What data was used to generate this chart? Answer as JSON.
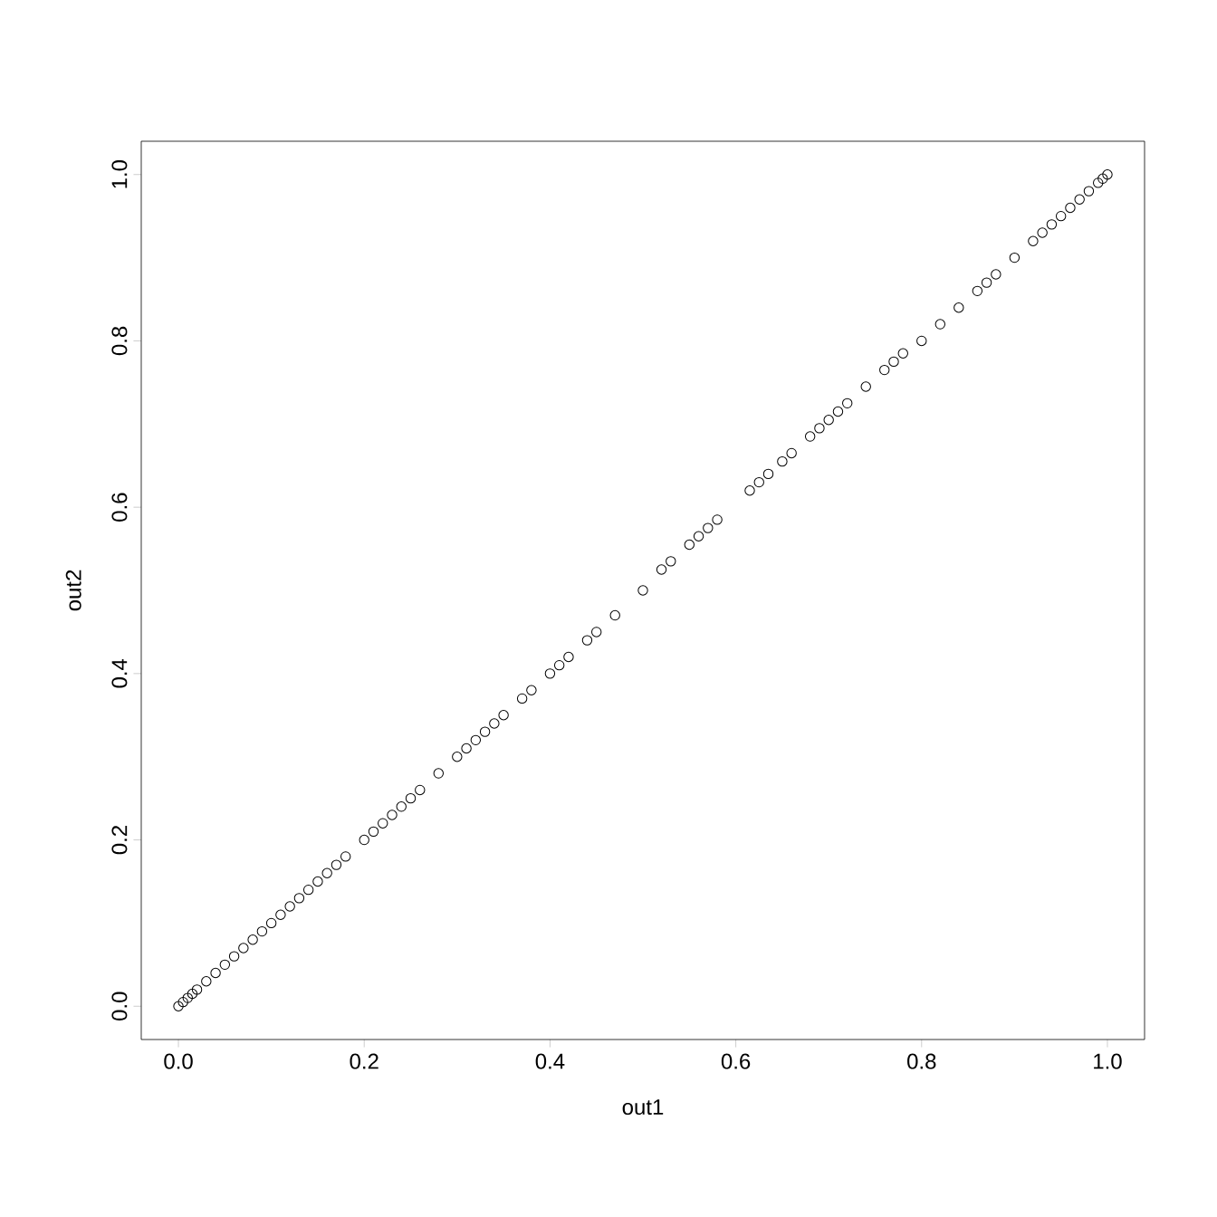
{
  "chart_data": {
    "type": "scatter",
    "xlabel": "out1",
    "ylabel": "out2",
    "marker": "circle",
    "grid": false,
    "xlim": [
      -0.04,
      1.04
    ],
    "ylim": [
      -0.04,
      1.04
    ],
    "xticks": [
      {
        "value": 0,
        "label": "0.0"
      },
      0.2,
      0.4,
      0.6,
      0.8,
      {
        "value": 1,
        "label": "1.0"
      }
    ],
    "yticks": [
      {
        "value": 0,
        "label": "0.0"
      },
      0.2,
      0.4,
      0.6,
      0.8,
      {
        "value": 1,
        "label": "1.0"
      }
    ],
    "series": [
      {
        "color": "#000000",
        "x": [
          0,
          0.005,
          0.01,
          0.015,
          0.02,
          0.03,
          0.04,
          0.05,
          0.06,
          0.07,
          0.08,
          0.09,
          0.1,
          0.11,
          0.12,
          0.13,
          0.14,
          0.15,
          0.16,
          0.17,
          0.18,
          0.2,
          0.21,
          0.22,
          0.23,
          0.24,
          0.25,
          0.26,
          0.28,
          0.3,
          0.31,
          0.32,
          0.33,
          0.34,
          0.35,
          0.37,
          0.38,
          0.4,
          0.41,
          0.42,
          0.44,
          0.45,
          0.47,
          0.5,
          0.52,
          0.53,
          0.55,
          0.56,
          0.57,
          0.58,
          0.615,
          0.625,
          0.635,
          0.65,
          0.66,
          0.68,
          0.69,
          0.7,
          0.71,
          0.72,
          0.74,
          0.76,
          0.77,
          0.78,
          0.8,
          0.82,
          0.84,
          0.86,
          0.87,
          0.88,
          0.9,
          0.92,
          0.93,
          0.94,
          0.95,
          0.96,
          0.97,
          0.98,
          0.99,
          0.995,
          1.0
        ],
        "values": [
          0,
          0.005,
          0.01,
          0.015,
          0.02,
          0.03,
          0.04,
          0.05,
          0.06,
          0.07,
          0.08,
          0.09,
          0.1,
          0.11,
          0.12,
          0.13,
          0.14,
          0.15,
          0.16,
          0.17,
          0.18,
          0.2,
          0.21,
          0.22,
          0.23,
          0.24,
          0.25,
          0.26,
          0.28,
          0.3,
          0.31,
          0.32,
          0.33,
          0.34,
          0.35,
          0.37,
          0.38,
          0.4,
          0.41,
          0.42,
          0.44,
          0.45,
          0.47,
          0.5,
          0.525,
          0.535,
          0.555,
          0.565,
          0.575,
          0.585,
          0.62,
          0.63,
          0.64,
          0.655,
          0.665,
          0.685,
          0.695,
          0.705,
          0.715,
          0.725,
          0.745,
          0.765,
          0.775,
          0.785,
          0.8,
          0.82,
          0.84,
          0.86,
          0.87,
          0.88,
          0.9,
          0.92,
          0.93,
          0.94,
          0.95,
          0.96,
          0.97,
          0.98,
          0.99,
          0.995,
          1.0
        ]
      }
    ]
  }
}
